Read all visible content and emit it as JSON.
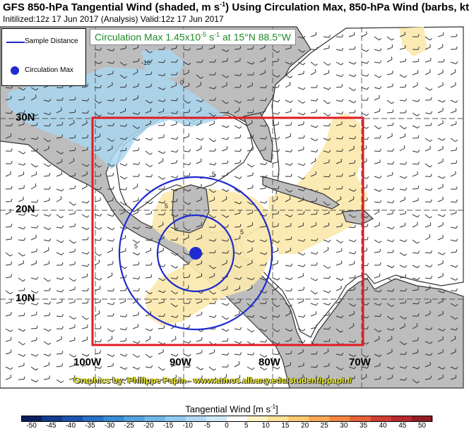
{
  "header": {
    "title": "GFS 850-hPa Tangential Wind (shaded, m s",
    "title_unit_sup": "-1",
    "title_tail": ") Using Circulation Max, 850-hPa Wind (barbs, kt",
    "subtitle": "Initilized:12z 17 Jun 2017 (Analysis) Valid:12z 17 Jun 2017"
  },
  "legend": {
    "line_label": "Sample Distance",
    "dot_label": "Circulation Max"
  },
  "circulation_label": {
    "prefix": "Circulation Max 1.45x10",
    "exp": "-5",
    "suffix": " s",
    "suffix_exp": "-1",
    "tail": " at 15°N 88.5°W"
  },
  "lat_labels": [
    "30N",
    "20N",
    "10N"
  ],
  "lon_labels": [
    "100W",
    "90W",
    "80W",
    "70W"
  ],
  "contour_labels": [
    "5",
    "5",
    "5",
    "5",
    "-10",
    "0"
  ],
  "credit": "Graphics by: Philippe Papin - www.atmos.albany.edu/student/ppapin/",
  "colorbar": {
    "title": "Tangential Wind [m s",
    "title_sup": "-1",
    "title_tail": "]",
    "tick_labels": [
      "-50",
      "-45",
      "-40",
      "-35",
      "-30",
      "-25",
      "-20",
      "-15",
      "-10",
      "-5",
      "0",
      "5",
      "10",
      "15",
      "20",
      "25",
      "30",
      "35",
      "40",
      "45",
      "50"
    ],
    "colors": [
      "#0a1f5c",
      "#143c8c",
      "#1d55aa",
      "#2a70c4",
      "#3b8ad2",
      "#55a1dc",
      "#72b6e6",
      "#92c9ee",
      "#b3daf4",
      "#d2eafa",
      "#ffffff",
      "#fff3c4",
      "#fde29a",
      "#fcc874",
      "#f8a858",
      "#f08643",
      "#e5623a",
      "#d03e33",
      "#b72a2d",
      "#8f1e25"
    ]
  },
  "colors": {
    "land": "#bdbdbd",
    "ocean": "#ffffff",
    "positive_shading": "#fbe8ad",
    "negative_shading": "#a9d6f0",
    "circle": "#1f2bcf",
    "domain_box": "#e11b22",
    "coast": "#222222"
  }
}
